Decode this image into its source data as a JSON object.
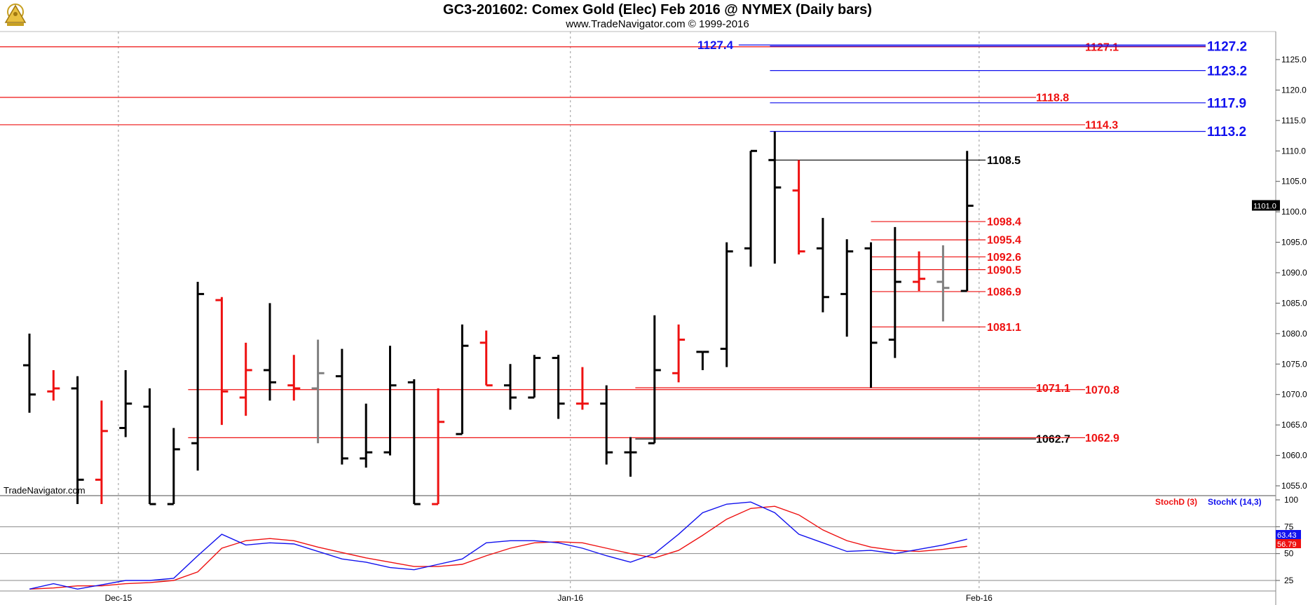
{
  "title": "GC3-201602:  Comex Gold (Elec) Feb 2016 @ NYMEX  (Daily bars)",
  "subtitle": "www.TradeNavigator.com © 1999-2016",
  "watermark": "TradeNavigator.com",
  "colors": {
    "up_bar": "#000000",
    "down_bar": "#ee1111",
    "neutral_bar": "#808080",
    "red_line": "#ee1111",
    "blue_line": "#1111ee",
    "grid": "#999999"
  },
  "chart_data": {
    "type": "ohlc",
    "price_axis": {
      "range": [
        1052,
        1130
      ],
      "ticks": [
        "1055.0",
        "1060.0",
        "1065.0",
        "1070.0",
        "1075.0",
        "1080.0",
        "1085.0",
        "1090.0",
        "1095.0",
        "1100.0",
        "1105.0",
        "1110.0",
        "1115.0",
        "1120.0",
        "1125.0"
      ],
      "last_price": "1101.0"
    },
    "date_axis": {
      "labels": [
        {
          "text": "Dec-15",
          "bar": 3.7
        },
        {
          "text": "Jan-16",
          "bar": 22.5
        },
        {
          "text": "Feb-16",
          "bar": 39.5
        }
      ]
    },
    "bars": [
      {
        "o": 1074.8,
        "h": 1080.0,
        "l": 1067.0,
        "c": 1070.0,
        "color": "up"
      },
      {
        "o": 1070.5,
        "h": 1074.0,
        "l": 1069.0,
        "c": 1071.0,
        "color": "down"
      },
      {
        "o": 1071.0,
        "h": 1073.0,
        "l": 1052.0,
        "c": 1056.0,
        "color": "up"
      },
      {
        "o": 1056.0,
        "h": 1069.0,
        "l": 1052.0,
        "c": 1064.0,
        "color": "down"
      },
      {
        "o": 1064.5,
        "h": 1074.0,
        "l": 1063.0,
        "c": 1068.5,
        "color": "up"
      },
      {
        "o": 1068.0,
        "h": 1071.0,
        "l": 1052.0,
        "c": 1052.0,
        "color": "up"
      },
      {
        "o": 1052.0,
        "h": 1064.5,
        "l": 1052.0,
        "c": 1061.0,
        "color": "up"
      },
      {
        "o": 1062.0,
        "h": 1088.5,
        "l": 1057.5,
        "c": 1086.5,
        "color": "up"
      },
      {
        "o": 1085.5,
        "h": 1086.0,
        "l": 1065.0,
        "c": 1070.5,
        "color": "down"
      },
      {
        "o": 1069.5,
        "h": 1078.5,
        "l": 1066.5,
        "c": 1074.0,
        "color": "down"
      },
      {
        "o": 1074.0,
        "h": 1085.0,
        "l": 1069.0,
        "c": 1072.0,
        "color": "up"
      },
      {
        "o": 1071.5,
        "h": 1076.5,
        "l": 1069.0,
        "c": 1071.0,
        "color": "down"
      },
      {
        "o": 1071.0,
        "h": 1079.0,
        "l": 1062.0,
        "c": 1073.5,
        "color": "neutral"
      },
      {
        "o": 1073.0,
        "h": 1077.5,
        "l": 1058.5,
        "c": 1059.5,
        "color": "up"
      },
      {
        "o": 1059.5,
        "h": 1068.5,
        "l": 1058.0,
        "c": 1060.5,
        "color": "up"
      },
      {
        "o": 1060.5,
        "h": 1078.0,
        "l": 1060.0,
        "c": 1071.5,
        "color": "up"
      },
      {
        "o": 1072.0,
        "h": 1072.5,
        "l": 1052.0,
        "c": 1052.0,
        "color": "up"
      },
      {
        "o": 1052.0,
        "h": 1071.0,
        "l": 1052.0,
        "c": 1065.5,
        "color": "down"
      },
      {
        "o": 1063.5,
        "h": 1081.5,
        "l": 1063.5,
        "c": 1078.0,
        "color": "up"
      },
      {
        "o": 1078.5,
        "h": 1080.5,
        "l": 1071.5,
        "c": 1071.5,
        "color": "down"
      },
      {
        "o": 1071.5,
        "h": 1075.0,
        "l": 1067.5,
        "c": 1069.5,
        "color": "up"
      },
      {
        "o": 1069.5,
        "h": 1076.5,
        "l": 1069.5,
        "c": 1076.0,
        "color": "up"
      },
      {
        "o": 1076.0,
        "h": 1076.5,
        "l": 1066.0,
        "c": 1068.5,
        "color": "up"
      },
      {
        "o": 1068.5,
        "h": 1074.5,
        "l": 1067.5,
        "c": 1068.5,
        "color": "down"
      },
      {
        "o": 1068.5,
        "h": 1071.5,
        "l": 1058.5,
        "c": 1060.5,
        "color": "up"
      },
      {
        "o": 1060.5,
        "h": 1063.0,
        "l": 1056.5,
        "c": 1060.5,
        "color": "up"
      },
      {
        "o": 1062.0,
        "h": 1083.0,
        "l": 1062.0,
        "c": 1074.0,
        "color": "up"
      },
      {
        "o": 1073.5,
        "h": 1081.5,
        "l": 1072.0,
        "c": 1079.0,
        "color": "down"
      },
      {
        "o": 1077.0,
        "h": 1077.0,
        "l": 1074.0,
        "c": 1077.0,
        "color": "up"
      },
      {
        "o": 1077.5,
        "h": 1095.0,
        "l": 1074.5,
        "c": 1093.5,
        "color": "up"
      },
      {
        "o": 1094.0,
        "h": 1110.0,
        "l": 1091.0,
        "c": 1110.0,
        "color": "up"
      },
      {
        "o": 1108.5,
        "h": 1113.2,
        "l": 1091.5,
        "c": 1104.0,
        "color": "up"
      },
      {
        "o": 1103.5,
        "h": 1108.5,
        "l": 1093.0,
        "c": 1093.5,
        "color": "down"
      },
      {
        "o": 1094.0,
        "h": 1099.0,
        "l": 1083.5,
        "c": 1086.0,
        "color": "up"
      },
      {
        "o": 1086.5,
        "h": 1095.5,
        "l": 1079.5,
        "c": 1093.5,
        "color": "up"
      },
      {
        "o": 1094.0,
        "h": 1095.0,
        "l": 1071.1,
        "c": 1078.5,
        "color": "up"
      },
      {
        "o": 1079.0,
        "h": 1097.5,
        "l": 1076.0,
        "c": 1088.5,
        "color": "up"
      },
      {
        "o": 1088.5,
        "h": 1093.5,
        "l": 1087.0,
        "c": 1089.0,
        "color": "down"
      },
      {
        "o": 1088.5,
        "h": 1094.5,
        "l": 1082.0,
        "c": 1087.5,
        "color": "neutral"
      },
      {
        "o": 1087.0,
        "h": 1110.0,
        "l": 1087.0,
        "c": 1101.0,
        "color": "up"
      }
    ],
    "levels": [
      {
        "label": "1127.1",
        "value": 1127.1,
        "color": "red",
        "start_bar": -1
      },
      {
        "label": "1118.8",
        "value": 1118.8,
        "color": "red",
        "start_bar": -1
      },
      {
        "label": "1114.3",
        "value": 1114.3,
        "color": "red",
        "start_bar": -1
      },
      {
        "label": "1127.4",
        "value": 1127.4,
        "color": "blue",
        "start_bar": 29.5
      },
      {
        "label": "1127.2",
        "value": 1127.2,
        "color": "blue",
        "start_bar": 30.8
      },
      {
        "label": "1123.2",
        "value": 1123.2,
        "color": "blue",
        "start_bar": 30.8
      },
      {
        "label": "1117.9",
        "value": 1117.9,
        "color": "blue",
        "start_bar": 30.8
      },
      {
        "label": "1113.2",
        "value": 1113.2,
        "color": "blue",
        "start_bar": 30.8
      },
      {
        "label": "1108.5",
        "value": 1108.5,
        "color": "black",
        "start_bar": 30.8
      },
      {
        "label": "1098.4",
        "value": 1098.4,
        "color": "red",
        "start_bar": 35.0
      },
      {
        "label": "1095.4",
        "value": 1095.4,
        "color": "red",
        "start_bar": 35.0
      },
      {
        "label": "1092.6",
        "value": 1092.6,
        "color": "red",
        "start_bar": 35.0
      },
      {
        "label": "1090.5",
        "value": 1090.5,
        "color": "red",
        "start_bar": 35.0
      },
      {
        "label": "1086.9",
        "value": 1086.9,
        "color": "red",
        "start_bar": 35.0
      },
      {
        "label": "1081.1",
        "value": 1081.1,
        "color": "red",
        "start_bar": 35.0
      },
      {
        "label": "1071.1",
        "value": 1071.1,
        "color": "red",
        "start_bar": 25.2
      },
      {
        "label": "1070.8",
        "value": 1070.8,
        "color": "red",
        "start_bar": 6.6
      },
      {
        "label": "1062.7",
        "value": 1062.7,
        "color": "black",
        "start_bar": 25.2
      },
      {
        "label": "1062.9",
        "value": 1062.9,
        "color": "red",
        "start_bar": 6.6
      }
    ],
    "stochastic": {
      "range": [
        15,
        100
      ],
      "ticks": [
        "100",
        "75",
        "50",
        "25"
      ],
      "legend": [
        {
          "name": "StochD (3)",
          "color": "red"
        },
        {
          "name": "StochK (14,3)",
          "color": "blue"
        }
      ],
      "last_k": "63.43",
      "last_d": "56.79",
      "k": [
        17,
        22,
        17,
        21,
        25,
        25,
        27,
        48,
        68,
        58,
        60,
        59,
        52,
        45,
        42,
        37,
        35,
        40,
        45,
        60,
        62,
        62,
        60,
        55,
        48,
        42,
        50,
        68,
        88,
        96,
        98,
        88,
        68,
        60,
        52,
        53,
        50,
        54,
        58,
        63.43
      ],
      "d": [
        17,
        18,
        20,
        20,
        22,
        23,
        25,
        33,
        55,
        62,
        64,
        62,
        56,
        51,
        46,
        42,
        38,
        38,
        40,
        48,
        55,
        60,
        61,
        60,
        55,
        50,
        46,
        53,
        67,
        82,
        92,
        94,
        86,
        72,
        62,
        56,
        53,
        52,
        54,
        56.79
      ]
    }
  }
}
